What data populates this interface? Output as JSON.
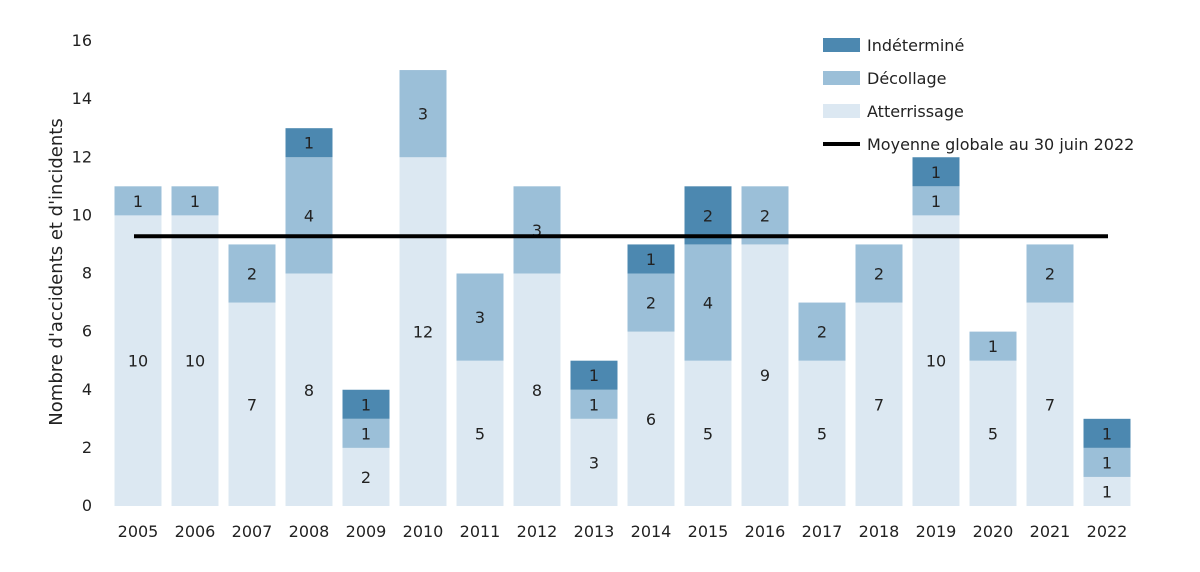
{
  "chart_data": {
    "type": "bar",
    "stacked": true,
    "categories": [
      "2005",
      "2006",
      "2007",
      "2008",
      "2009",
      "2010",
      "2011",
      "2012",
      "2013",
      "2014",
      "2015",
      "2016",
      "2017",
      "2018",
      "2019",
      "2020",
      "2021",
      "2022"
    ],
    "series": [
      {
        "name": "Atterrissage",
        "color": "#dce8f2",
        "values": [
          10,
          10,
          7,
          8,
          2,
          12,
          5,
          8,
          3,
          6,
          5,
          9,
          5,
          7,
          10,
          5,
          7,
          1
        ]
      },
      {
        "name": "Décollage",
        "color": "#9bbfd8",
        "values": [
          1,
          1,
          2,
          4,
          1,
          3,
          3,
          3,
          1,
          2,
          4,
          2,
          2,
          2,
          1,
          1,
          2,
          1
        ]
      },
      {
        "name": "Indéterminé",
        "color": "#4c88b0",
        "values": [
          0,
          0,
          0,
          1,
          1,
          0,
          0,
          0,
          1,
          1,
          2,
          0,
          0,
          0,
          1,
          0,
          0,
          1
        ]
      }
    ],
    "average_line": {
      "name": "Moyenne globale au 30 juin 2022",
      "value": 9.28,
      "color": "#000000"
    },
    "ylabel": "Nombre d'accidents et d'incidents",
    "xlabel": "",
    "ylim": [
      0,
      16
    ],
    "yticks": [
      0,
      2,
      4,
      6,
      8,
      10,
      12,
      14,
      16
    ],
    "legend_order": [
      "Indéterminé",
      "Décollage",
      "Atterrissage",
      "Moyenne globale au 30 juin 2022"
    ],
    "legend_position": "top-right",
    "grid": false
  }
}
